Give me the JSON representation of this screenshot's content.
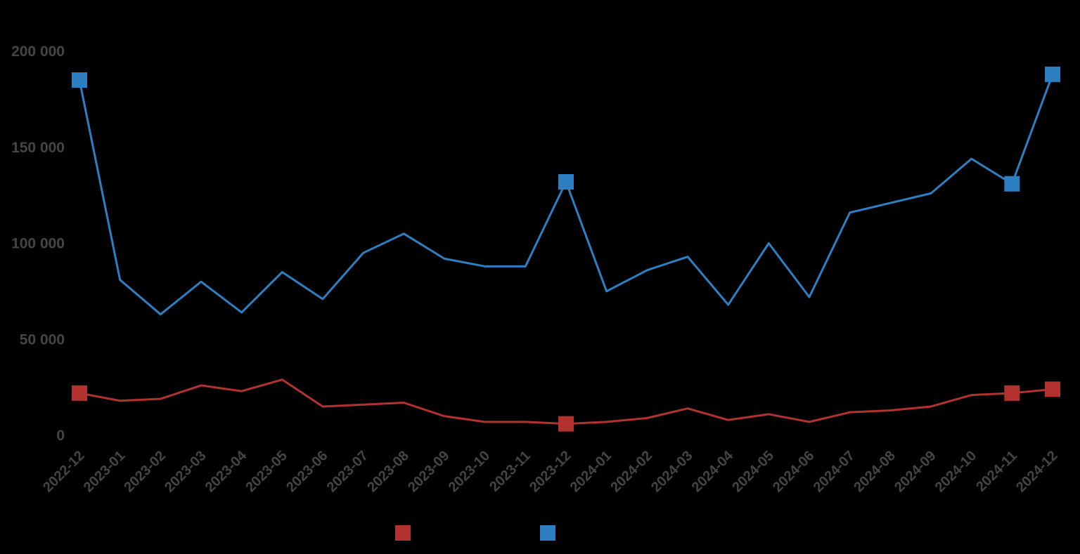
{
  "canvas": {
    "background": "#000000",
    "axis_text_color": "#454545"
  },
  "chart_data": {
    "type": "line",
    "title": "",
    "xlabel": "",
    "ylabel": "",
    "grid": false,
    "legend_position": "bottom",
    "ylim": [
      0,
      200000
    ],
    "yticks": [
      0,
      50000,
      100000,
      150000,
      200000
    ],
    "ytick_labels": [
      "0",
      "50 000",
      "100 000",
      "150 000",
      "200 000"
    ],
    "categories": [
      "2022-12",
      "2023-01",
      "2023-02",
      "2023-03",
      "2023-04",
      "2023-05",
      "2023-06",
      "2023-07",
      "2023-08",
      "2023-09",
      "2023-10",
      "2023-11",
      "2023-12",
      "2024-01",
      "2024-02",
      "2024-03",
      "2024-04",
      "2024-05",
      "2024-06",
      "2024-07",
      "2024-08",
      "2024-09",
      "2024-10",
      "2024-11",
      "2024-12"
    ],
    "series": [
      {
        "name": "",
        "color": "#b23230",
        "marker": "square",
        "marker_indices": [
          0,
          12,
          23,
          24
        ],
        "values": [
          22000,
          18000,
          19000,
          26000,
          23000,
          29000,
          15000,
          16000,
          17000,
          10000,
          7000,
          7000,
          6000,
          7000,
          9000,
          14000,
          8000,
          11000,
          7000,
          12000,
          13000,
          15000,
          21000,
          22000,
          24000
        ]
      },
      {
        "name": "",
        "color": "#2e7fc2",
        "marker": "square",
        "marker_indices": [
          0,
          12,
          23,
          24
        ],
        "values": [
          185000,
          81000,
          63000,
          80000,
          64000,
          85000,
          71000,
          95000,
          105000,
          92000,
          88000,
          88000,
          132000,
          75000,
          86000,
          93000,
          68000,
          100000,
          72000,
          116000,
          121000,
          126000,
          144000,
          131000,
          188000
        ]
      }
    ],
    "legend": [
      {
        "label": "",
        "color": "#b23230"
      },
      {
        "label": "",
        "color": "#2e7fc2"
      }
    ]
  }
}
